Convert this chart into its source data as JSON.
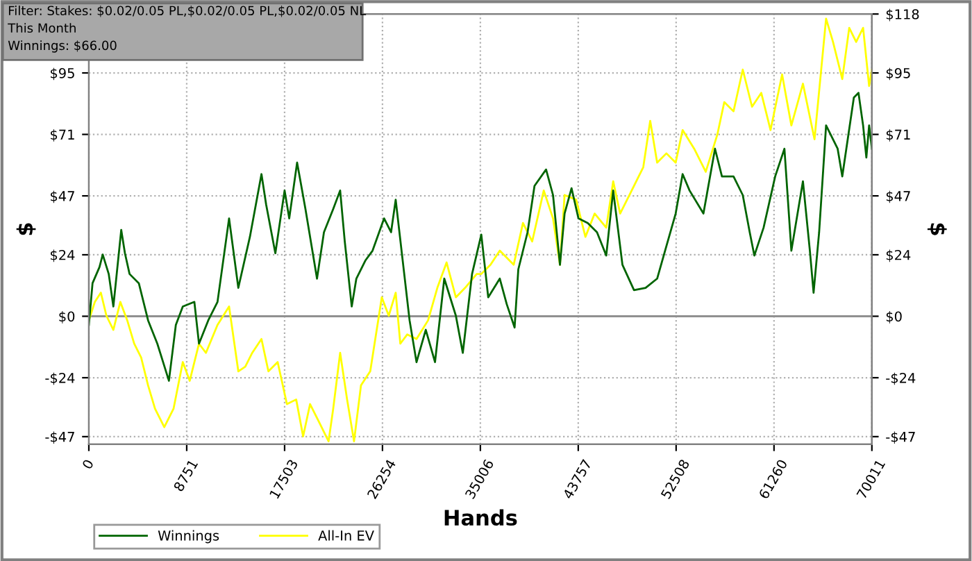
{
  "chart_data": {
    "type": "line",
    "annotations": [
      "Filter: Stakes: $0.02/0.05 PL,$0.02/0.05 PL,$0.02/0.05 NL",
      "This Month",
      "Winnings: $66.00"
    ],
    "xlabel": "Hands",
    "ylabel": "$",
    "y2label": "$",
    "xlim": [
      0,
      70011
    ],
    "xticks": [
      0,
      8751,
      17503,
      26254,
      35006,
      43757,
      52508,
      61260,
      70011
    ],
    "ylim": [
      -50,
      118
    ],
    "yticks": [
      {
        "value": -47,
        "label": "-$47"
      },
      {
        "value": -24,
        "label": "-$24"
      },
      {
        "value": 0,
        "label": "$0"
      },
      {
        "value": 24,
        "label": "$24"
      },
      {
        "value": 47,
        "label": "$47"
      },
      {
        "value": 71,
        "label": "$71"
      },
      {
        "value": 95,
        "label": "$95"
      }
    ],
    "y2lim": [
      -50,
      118
    ],
    "y2ticks": [
      {
        "value": -47,
        "label": "-$47"
      },
      {
        "value": -24,
        "label": "-$24"
      },
      {
        "value": 0,
        "label": "$0"
      },
      {
        "value": 24,
        "label": "$24"
      },
      {
        "value": 47,
        "label": "$47"
      },
      {
        "value": 71,
        "label": "$71"
      },
      {
        "value": 95,
        "label": "$95"
      },
      {
        "value": 118,
        "label": "$118"
      }
    ],
    "grid": true,
    "legend": "bottom left",
    "ref_lines": [
      {
        "axis": "y",
        "value": 0,
        "color": "#909090"
      }
    ],
    "series": [
      {
        "name": "Winnings",
        "color": "#006400",
        "x": [
          0,
          331,
          952,
          1241,
          1779,
          2193,
          2897,
          3228,
          3641,
          4469,
          5297,
          6124,
          7159,
          7779,
          8400,
          9435,
          9848,
          10676,
          11503,
          12538,
          13365,
          14400,
          15435,
          15848,
          16676,
          17503,
          17917,
          18621,
          19366,
          20400,
          21021,
          21849,
          22469,
          22883,
          23504,
          23918,
          24745,
          25366,
          26400,
          27021,
          27435,
          28056,
          28677,
          29297,
          30125,
          30952,
          31780,
          32815,
          33435,
          34263,
          35090,
          35708,
          36743,
          37364,
          38067,
          38398,
          39226,
          39846,
          40881,
          41502,
          42122,
          42536,
          43157,
          43777,
          44605,
          45433,
          46260,
          46881,
          47709,
          48743,
          49778,
          50812,
          51640,
          52468,
          53089,
          53709,
          54950,
          55985,
          56605,
          57640,
          58467,
          59088,
          59502,
          60329,
          61364,
          62192,
          62812,
          63847,
          64467,
          64798,
          65295,
          65916,
          66950,
          67364,
          68399,
          68813,
          69226,
          69516,
          69764,
          70011
        ],
        "values": [
          -3.4,
          12.9,
          19.2,
          24.1,
          16.5,
          3.8,
          33.7,
          24.6,
          16.5,
          12.9,
          -1.6,
          -10.7,
          -25.2,
          -3.4,
          3.8,
          5.6,
          -10.7,
          -1.6,
          5.6,
          38.2,
          11.1,
          31,
          55.5,
          43.7,
          24.6,
          49.1,
          38.2,
          60,
          41.9,
          14.7,
          32.8,
          41.9,
          49.1,
          29.2,
          3.8,
          14.7,
          21.9,
          25.6,
          38.2,
          32.8,
          45.5,
          21.9,
          -1.6,
          -17.9,
          -5.3,
          -17.9,
          14.7,
          0.2,
          -14.3,
          16.5,
          31.9,
          7.4,
          14.7,
          4.7,
          -4.4,
          18.3,
          32.8,
          50.9,
          57.3,
          47.3,
          20.1,
          40.1,
          50,
          38.2,
          36.4,
          32.8,
          23.7,
          49.1,
          20.1,
          10.2,
          11.1,
          14.7,
          27.4,
          40.1,
          55.5,
          49.1,
          40.1,
          65.4,
          54.6,
          54.6,
          47.3,
          32.8,
          23.7,
          34.6,
          54.6,
          65.4,
          25.6,
          52.7,
          25.6,
          9.2,
          32.8,
          74.5,
          65.4,
          54.6,
          85.4,
          87.2,
          74.5,
          62,
          74.5,
          65.4
        ]
      },
      {
        "name": "All-In EV",
        "color": "#ffff00",
        "x": [
          0,
          538,
          1076,
          1572,
          2193,
          2814,
          3434,
          4055,
          4676,
          5297,
          5917,
          6745,
          7572,
          8400,
          9021,
          9848,
          10469,
          11503,
          12538,
          13365,
          13986,
          14607,
          15435,
          16055,
          16883,
          17710,
          18538,
          19159,
          19780,
          20607,
          21435,
          21849,
          22469,
          23090,
          23711,
          24331,
          25159,
          26193,
          26814,
          27435,
          27849,
          28470,
          29297,
          30331,
          31159,
          31987,
          32815,
          33642,
          34677,
          35088,
          35915,
          36743,
          37985,
          38812,
          39640,
          40674,
          41502,
          42122,
          42536,
          43571,
          44398,
          45226,
          46260,
          46881,
          47502,
          48536,
          49571,
          50191,
          50812,
          51640,
          52468,
          53089,
          54123,
          55157,
          56192,
          56813,
          57640,
          58467,
          59295,
          60122,
          60950,
          61985,
          62812,
          63847,
          64881,
          65916,
          66536,
          67364,
          67985,
          68606,
          69226,
          69764,
          70011
        ],
        "values": [
          -1.6,
          5.6,
          9.2,
          0.2,
          -5.3,
          5.6,
          -1.6,
          -10.7,
          -16.1,
          -27,
          -36.1,
          -43.3,
          -36.1,
          -17.9,
          -25.2,
          -10.7,
          -14.3,
          -3.4,
          3.8,
          -21.5,
          -19.7,
          -14.3,
          -8.9,
          -21.5,
          -17.9,
          -34.3,
          -32.5,
          -46.9,
          -34.3,
          -41.5,
          -48.8,
          -36.1,
          -14.3,
          -32.5,
          -48.8,
          -27,
          -21.5,
          7.4,
          0.2,
          9.2,
          -10.7,
          -7.1,
          -8.9,
          -1.6,
          11.1,
          21,
          7.4,
          11.1,
          16.5,
          16.5,
          20.1,
          25.6,
          20.1,
          36.4,
          29.2,
          49.1,
          38.2,
          20.1,
          47.3,
          45.5,
          31,
          40.1,
          34.6,
          52.7,
          40.1,
          49.1,
          58.2,
          76.3,
          60,
          63.6,
          60,
          72.7,
          65.4,
          56.4,
          70.9,
          83.6,
          80,
          96.3,
          81.8,
          87.2,
          72.7,
          94.4,
          74.5,
          90.8,
          69.1,
          116.2,
          107.1,
          92.6,
          112.6,
          107.1,
          112.6,
          89.9,
          96.3
        ]
      }
    ]
  }
}
